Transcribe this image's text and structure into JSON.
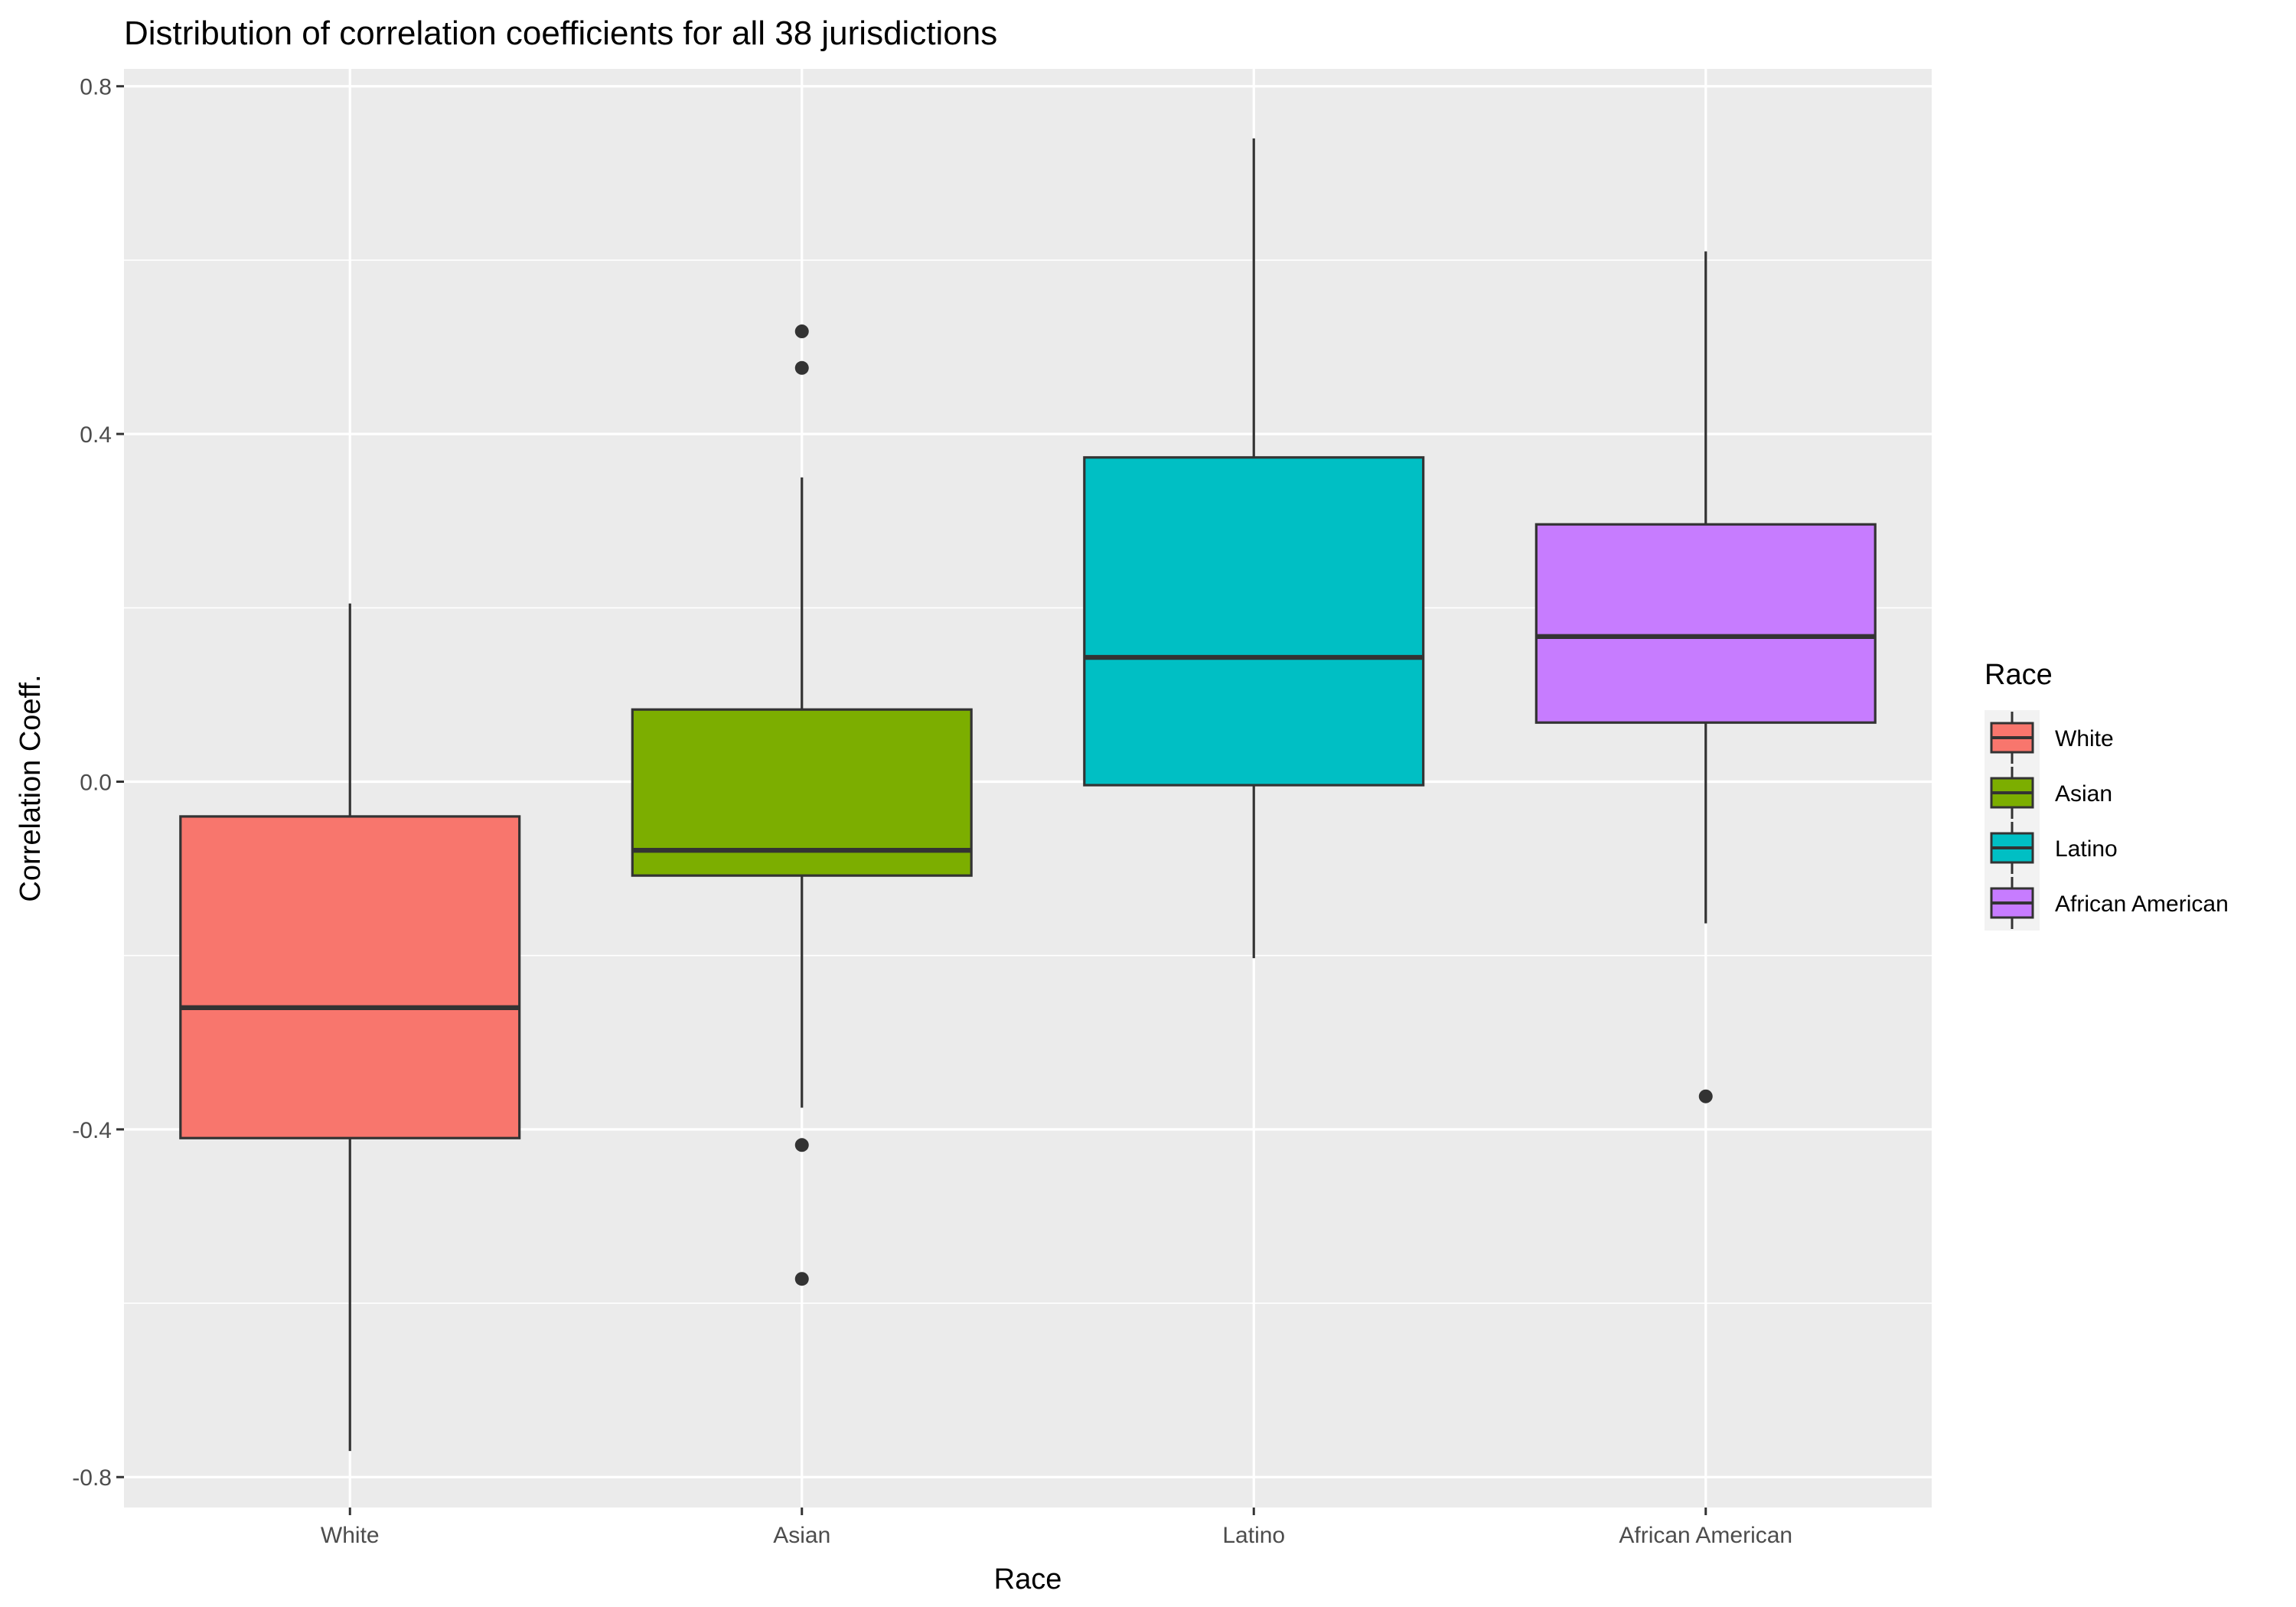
{
  "chart_data": {
    "type": "boxplot",
    "title": "Distribution of correlation coefficients for all 38 jurisdictions",
    "xlabel": "Race",
    "ylabel": "Correlation Coeff.",
    "ylim": [
      -0.835,
      0.82
    ],
    "yticks": [
      -0.8,
      -0.4,
      0.0,
      0.4,
      0.8
    ],
    "ytick_labels": [
      "-0.8",
      "-0.4",
      "0.0",
      "0.4",
      "0.8"
    ],
    "grid": true,
    "background": "#ebebeb",
    "legend": {
      "title": "Race",
      "position": "right"
    },
    "categories": [
      "White",
      "Asian",
      "Latino",
      "African American"
    ],
    "series": [
      {
        "name": "White",
        "color": "#F8766D",
        "whisker_low": -0.77,
        "q1": -0.41,
        "median": -0.26,
        "q3": -0.04,
        "whisker_high": 0.205,
        "outliers": []
      },
      {
        "name": "Asian",
        "color": "#7CAE00",
        "whisker_low": -0.375,
        "q1": -0.108,
        "median": -0.079,
        "q3": 0.083,
        "whisker_high": 0.35,
        "outliers": [
          0.518,
          0.476,
          -0.418,
          -0.572
        ]
      },
      {
        "name": "Latino",
        "color": "#00BFC4",
        "whisker_low": -0.203,
        "q1": -0.004,
        "median": 0.143,
        "q3": 0.373,
        "whisker_high": 0.74,
        "outliers": []
      },
      {
        "name": "African American",
        "color": "#C77CFF",
        "whisker_low": -0.163,
        "q1": 0.068,
        "median": 0.167,
        "q3": 0.296,
        "whisker_high": 0.61,
        "outliers": [
          -0.362
        ]
      }
    ]
  }
}
